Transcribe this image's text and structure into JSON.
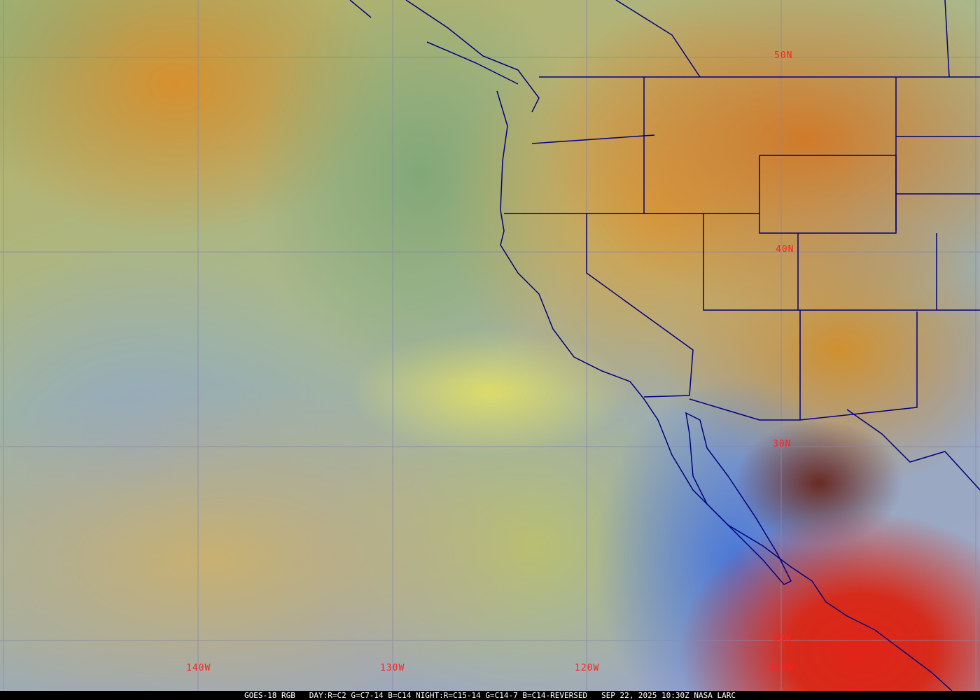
{
  "map": {
    "latitude_labels": [
      "50N",
      "40N",
      "30N",
      "20N"
    ],
    "longitude_labels": [
      "140W",
      "130W",
      "120W",
      "110W"
    ],
    "caption": {
      "product": "GOES-18 RGB",
      "recipe": "DAY:R=C2 G=C7-14 B=C14 NIGHT:R=C15-14 G=C14-7 B=C14-REVERSED",
      "timestamp": "SEP 22, 2025 10:30Z NASA LARC"
    },
    "colors": {
      "grid": "#8080a0",
      "borders": "#000080",
      "labels": "#ff2020"
    }
  }
}
